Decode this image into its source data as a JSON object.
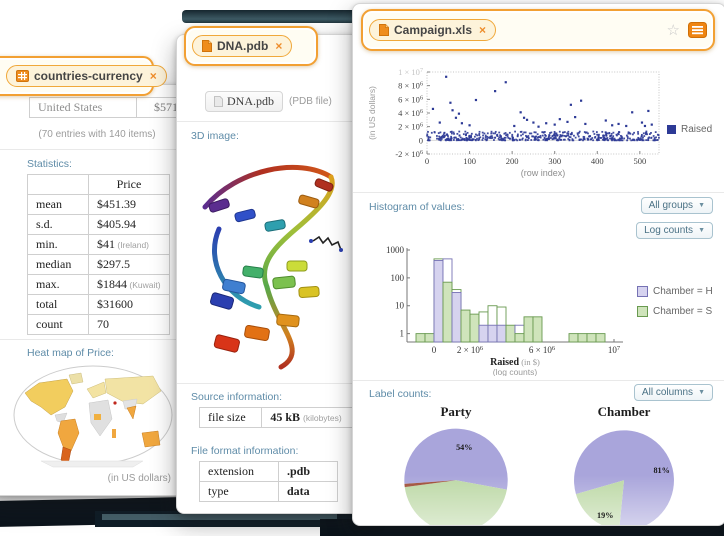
{
  "glyphs": {
    "close": "×",
    "dropdown_arrow": "▼",
    "star": "☆"
  },
  "accent": {
    "orange": "#f2a033",
    "heading_blue": "#5f8ca8",
    "scatter_point": "#2d3a96"
  },
  "left_window": {
    "tab": {
      "label": "countries-currency"
    },
    "preview": {
      "name": "United States",
      "value": "$571"
    },
    "caption": "(70 entries with 140 items)",
    "stats": {
      "heading": "Statistics:",
      "col_header": "Price",
      "rows": [
        {
          "label": "mean",
          "value": "$451.39",
          "note": ""
        },
        {
          "label": "s.d.",
          "value": "$405.94",
          "note": ""
        },
        {
          "label": "min.",
          "value": "$41",
          "note": "(Ireland)"
        },
        {
          "label": "median",
          "value": "$297.5",
          "note": ""
        },
        {
          "label": "max.",
          "value": "$1844",
          "note": "(Kuwait)"
        },
        {
          "label": "total",
          "value": "$31600",
          "note": ""
        },
        {
          "label": "count",
          "value": "70",
          "note": ""
        }
      ]
    },
    "heatmap": {
      "heading": "Heat map of Price:",
      "caption": "(in US dollars)"
    }
  },
  "middle_window": {
    "tab": {
      "label": "DNA.pdb"
    },
    "chip": {
      "label": "DNA.pdb",
      "note": "(PDB file)"
    },
    "image_heading": "3D image:",
    "source": {
      "heading": "Source information:",
      "label": "file size",
      "value": "45 kB",
      "note": "(kilobytes)"
    },
    "format": {
      "heading": "File format information:",
      "rows": [
        {
          "label": "extension",
          "value": ".pdb"
        },
        {
          "label": "type",
          "value": "data"
        }
      ]
    }
  },
  "right_window": {
    "tab": {
      "label": "Campaign.xls"
    },
    "histogram_section": {
      "heading": "Histogram of values:",
      "groups_dropdown": "All groups",
      "scale_dropdown": "Log counts"
    },
    "labels_section": {
      "heading": "Label counts:",
      "columns_dropdown": "All columns"
    }
  },
  "chart_data": [
    {
      "id": "raised-scatter",
      "type": "scatter",
      "title": "",
      "xlabel": "(row index)",
      "ylabel": "(in US dollars)",
      "legend": [
        {
          "label": "Raised",
          "color": "#2d3a96"
        }
      ],
      "xlim": [
        0,
        545
      ],
      "ylim": [
        -2000000,
        10000000
      ],
      "x_ticks": [
        0,
        100,
        200,
        300,
        400,
        500
      ],
      "y_ticks": [
        {
          "v": -2000000,
          "base": "-2 × 10",
          "exp": "6"
        },
        {
          "v": 0,
          "base": "0",
          "exp": ""
        },
        {
          "v": 2000000,
          "base": "2 × 10",
          "exp": "6"
        },
        {
          "v": 4000000,
          "base": "4 × 10",
          "exp": "6"
        },
        {
          "v": 6000000,
          "base": "6 × 10",
          "exp": "6"
        },
        {
          "v": 8000000,
          "base": "8 × 10",
          "exp": "6"
        },
        {
          "v": 10000000,
          "base": "1 × 10",
          "exp": "7"
        }
      ],
      "baseline_points": {
        "n": 520,
        "x_min": 0,
        "x_max": 545,
        "y_max": 1300000,
        "seed": 7
      },
      "outliers": [
        [
          14,
          4600000
        ],
        [
          30,
          2600000
        ],
        [
          45,
          9300000
        ],
        [
          55,
          5500000
        ],
        [
          60,
          4400000
        ],
        [
          68,
          3300000
        ],
        [
          75,
          3900000
        ],
        [
          82,
          2500000
        ],
        [
          100,
          2200000
        ],
        [
          115,
          5900000
        ],
        [
          160,
          7200000
        ],
        [
          185,
          8500000
        ],
        [
          205,
          2100000
        ],
        [
          220,
          4100000
        ],
        [
          228,
          3300000
        ],
        [
          235,
          3000000
        ],
        [
          250,
          2600000
        ],
        [
          262,
          2000000
        ],
        [
          280,
          2500000
        ],
        [
          300,
          2300000
        ],
        [
          312,
          3100000
        ],
        [
          330,
          2700000
        ],
        [
          338,
          5200000
        ],
        [
          348,
          3400000
        ],
        [
          362,
          5800000
        ],
        [
          372,
          2400000
        ],
        [
          420,
          2900000
        ],
        [
          435,
          2200000
        ],
        [
          450,
          2400000
        ],
        [
          468,
          2100000
        ],
        [
          482,
          4100000
        ],
        [
          505,
          2600000
        ],
        [
          512,
          2100000
        ],
        [
          520,
          4300000
        ],
        [
          528,
          2300000
        ]
      ]
    },
    {
      "id": "raised-histogram",
      "type": "histogram",
      "xlabel_main": "Raised",
      "xlabel_note": "(in $)",
      "sublabel": "(log counts)",
      "yscale": "log",
      "y_ticks": [
        1,
        10,
        100,
        1000
      ],
      "x_ticks": [
        {
          "v": 0,
          "base": "0",
          "exp": ""
        },
        {
          "v": 2000000,
          "base": "2 × 10",
          "exp": "6"
        },
        {
          "v": 6000000,
          "base": "6 × 10",
          "exp": "6"
        },
        {
          "v": 10000000,
          "base": "10",
          "exp": "7"
        }
      ],
      "xlim": [
        -1500000,
        10500000
      ],
      "bin_start": -1000000,
      "bin_width": 500000,
      "series": [
        {
          "name": "Chamber = H",
          "fill": "#d6d3ef",
          "edge": "#7672b4",
          "counts": [
            0,
            0,
            420,
            480,
            30,
            7,
            5,
            2,
            2,
            2,
            2,
            2,
            4,
            4,
            0,
            0,
            0,
            0,
            0,
            1,
            0,
            0
          ]
        },
        {
          "name": "Chamber = S",
          "fill": "#cfe4bb",
          "edge": "#699a50",
          "counts": [
            1,
            1,
            480,
            70,
            38,
            7,
            5,
            6,
            10,
            9,
            2,
            1,
            4,
            4,
            0,
            0,
            0,
            1,
            1,
            1,
            1,
            0
          ]
        }
      ]
    },
    {
      "id": "party-pie",
      "type": "pie",
      "title": "Party",
      "start_deg": 266,
      "slices": [
        {
          "label": "54%",
          "value": 54,
          "color": "#a9a5db",
          "label_deg": 14,
          "label_r": 0.66
        },
        {
          "label": "",
          "value": 45,
          "color": "#bcd8a5"
        },
        {
          "label": "",
          "value": 1,
          "color": "#9c4a33"
        }
      ]
    },
    {
      "id": "chamber-pie",
      "type": "pie",
      "title": "Chamber",
      "start_deg": 254,
      "slices": [
        {
          "label": "81%",
          "value": 81,
          "color": "#a9a5db",
          "label_deg": 75,
          "label_r": 0.78
        },
        {
          "label": "19%",
          "value": 19,
          "color": "#bcd8a5",
          "label_deg": 208,
          "label_r": 0.8
        }
      ]
    }
  ]
}
